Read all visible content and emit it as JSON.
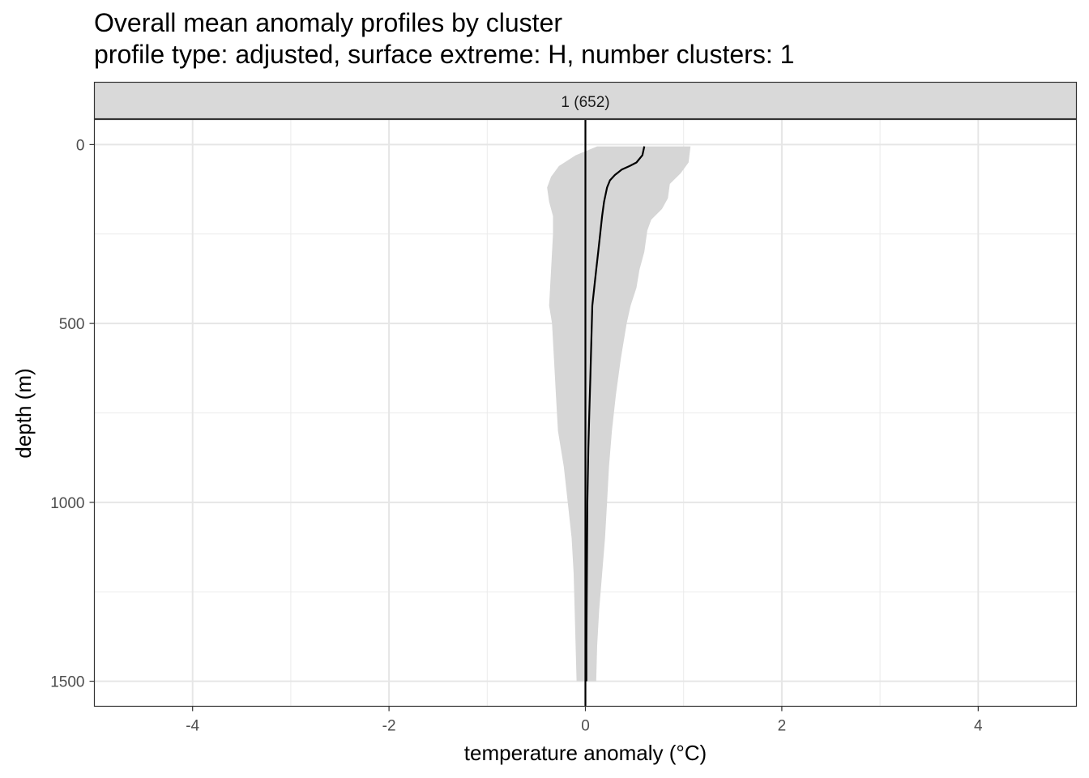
{
  "chart_data": {
    "type": "line",
    "title": "Overall mean anomaly profiles by cluster",
    "subtitle": "profile type: adjusted, surface extreme: H, number clusters: 1",
    "xlabel": "temperature anomaly (°C)",
    "ylabel": "depth (m)",
    "xlim": [
      -5,
      5
    ],
    "ylim": [
      1570,
      -70
    ],
    "y_reversed": true,
    "grid": true,
    "facet": {
      "label": "1 (652)"
    },
    "x_ticks": [
      -4,
      -2,
      0,
      2,
      4
    ],
    "x_tick_labels": [
      "-4",
      "-2",
      "0",
      "2",
      "4"
    ],
    "y_ticks": [
      0,
      500,
      1000,
      1500
    ],
    "y_tick_labels": [
      "0",
      "500",
      "1000",
      "1500"
    ],
    "reference_line_x": 0,
    "series": [
      {
        "kind": "mean",
        "color": "#000000",
        "points": [
          [
            0.6,
            5
          ],
          [
            0.58,
            30
          ],
          [
            0.52,
            50
          ],
          [
            0.45,
            60
          ],
          [
            0.37,
            70
          ],
          [
            0.3,
            85
          ],
          [
            0.25,
            100
          ],
          [
            0.22,
            120
          ],
          [
            0.19,
            160
          ],
          [
            0.17,
            200
          ],
          [
            0.15,
            250
          ],
          [
            0.13,
            300
          ],
          [
            0.11,
            350
          ],
          [
            0.09,
            400
          ],
          [
            0.07,
            450
          ],
          [
            0.06,
            550
          ],
          [
            0.05,
            650
          ],
          [
            0.04,
            750
          ],
          [
            0.03,
            850
          ],
          [
            0.02,
            1000
          ],
          [
            0.015,
            1200
          ],
          [
            0.01,
            1400
          ],
          [
            0.01,
            1500
          ]
        ]
      },
      {
        "kind": "range",
        "color": "#d6d6d6",
        "upper": [
          [
            1.07,
            5
          ],
          [
            1.05,
            50
          ],
          [
            0.97,
            80
          ],
          [
            0.86,
            110
          ],
          [
            0.84,
            150
          ],
          [
            0.78,
            180
          ],
          [
            0.67,
            210
          ],
          [
            0.63,
            240
          ],
          [
            0.6,
            300
          ],
          [
            0.55,
            350
          ],
          [
            0.52,
            400
          ],
          [
            0.46,
            450
          ],
          [
            0.42,
            500
          ],
          [
            0.36,
            600
          ],
          [
            0.31,
            700
          ],
          [
            0.27,
            800
          ],
          [
            0.24,
            900
          ],
          [
            0.22,
            1000
          ],
          [
            0.2,
            1100
          ],
          [
            0.17,
            1200
          ],
          [
            0.14,
            1300
          ],
          [
            0.12,
            1400
          ],
          [
            0.11,
            1500
          ]
        ],
        "lower": [
          [
            0.12,
            5
          ],
          [
            -0.1,
            30
          ],
          [
            -0.27,
            60
          ],
          [
            -0.35,
            90
          ],
          [
            -0.39,
            120
          ],
          [
            -0.37,
            160
          ],
          [
            -0.33,
            200
          ],
          [
            -0.33,
            250
          ],
          [
            -0.34,
            300
          ],
          [
            -0.36,
            400
          ],
          [
            -0.37,
            450
          ],
          [
            -0.34,
            500
          ],
          [
            -0.32,
            600
          ],
          [
            -0.3,
            700
          ],
          [
            -0.28,
            800
          ],
          [
            -0.22,
            900
          ],
          [
            -0.18,
            1000
          ],
          [
            -0.14,
            1100
          ],
          [
            -0.12,
            1200
          ],
          [
            -0.11,
            1300
          ],
          [
            -0.1,
            1400
          ],
          [
            -0.09,
            1500
          ]
        ]
      }
    ]
  }
}
